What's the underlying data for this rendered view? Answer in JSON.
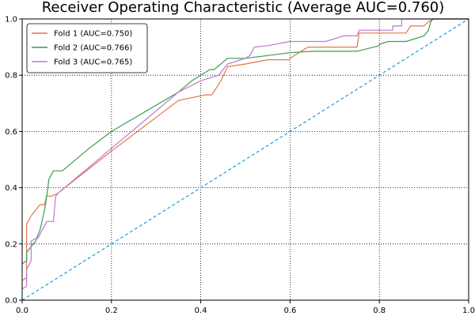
{
  "chart_data": {
    "type": "line",
    "title": "Receiver Operating Characteristic (Average AUC=0.760)",
    "xlabel": "",
    "ylabel": "",
    "xlim": [
      0,
      1
    ],
    "ylim": [
      0,
      1
    ],
    "grid": true,
    "legend_position": "top-left",
    "x_ticks": [
      "0.0",
      "0.2",
      "0.4",
      "0.6",
      "0.8",
      "1.0"
    ],
    "y_ticks": [
      "0.0",
      "0.2",
      "0.4",
      "0.6",
      "0.8",
      "1.0"
    ],
    "series": [
      {
        "name": "Fold 1 (AUC=0.750)",
        "color": "#e1774b",
        "points": [
          [
            0,
            0.07
          ],
          [
            0.01,
            0.08
          ],
          [
            0.01,
            0.27
          ],
          [
            0.02,
            0.3
          ],
          [
            0.03,
            0.32
          ],
          [
            0.04,
            0.34
          ],
          [
            0.05,
            0.34
          ],
          [
            0.055,
            0.37
          ],
          [
            0.065,
            0.37
          ],
          [
            0.08,
            0.38
          ],
          [
            0.2,
            0.53
          ],
          [
            0.35,
            0.71
          ],
          [
            0.41,
            0.73
          ],
          [
            0.425,
            0.73
          ],
          [
            0.445,
            0.78
          ],
          [
            0.46,
            0.83
          ],
          [
            0.5,
            0.84
          ],
          [
            0.55,
            0.855
          ],
          [
            0.6,
            0.855
          ],
          [
            0.6,
            0.86
          ],
          [
            0.64,
            0.9
          ],
          [
            0.75,
            0.9
          ],
          [
            0.755,
            0.95
          ],
          [
            0.84,
            0.95
          ],
          [
            0.86,
            0.95
          ],
          [
            0.87,
            0.975
          ],
          [
            0.9,
            0.975
          ],
          [
            0.91,
            0.99
          ],
          [
            0.92,
            1.0
          ],
          [
            1.0,
            1.0
          ]
        ]
      },
      {
        "name": "Fold 2 (AUC=0.766)",
        "color": "#3b9d4c",
        "points": [
          [
            0,
            0.13
          ],
          [
            0.01,
            0.14
          ],
          [
            0.01,
            0.17
          ],
          [
            0.025,
            0.2
          ],
          [
            0.03,
            0.21
          ],
          [
            0.04,
            0.25
          ],
          [
            0.05,
            0.32
          ],
          [
            0.055,
            0.37
          ],
          [
            0.06,
            0.43
          ],
          [
            0.07,
            0.46
          ],
          [
            0.09,
            0.46
          ],
          [
            0.15,
            0.54
          ],
          [
            0.2,
            0.6
          ],
          [
            0.35,
            0.74
          ],
          [
            0.38,
            0.78
          ],
          [
            0.42,
            0.82
          ],
          [
            0.43,
            0.82
          ],
          [
            0.46,
            0.86
          ],
          [
            0.5,
            0.86
          ],
          [
            0.55,
            0.87
          ],
          [
            0.6,
            0.88
          ],
          [
            0.65,
            0.885
          ],
          [
            0.75,
            0.885
          ],
          [
            0.8,
            0.905
          ],
          [
            0.8,
            0.91
          ],
          [
            0.82,
            0.92
          ],
          [
            0.86,
            0.92
          ],
          [
            0.9,
            0.94
          ],
          [
            0.91,
            0.96
          ],
          [
            0.915,
            0.99
          ],
          [
            0.92,
            1.0
          ],
          [
            1.0,
            1.0
          ]
        ]
      },
      {
        "name": "Fold 3 (AUC=0.765)",
        "color": "#c075d1",
        "points": [
          [
            0,
            0.04
          ],
          [
            0.01,
            0.05
          ],
          [
            0.01,
            0.11
          ],
          [
            0.02,
            0.14
          ],
          [
            0.02,
            0.21
          ],
          [
            0.03,
            0.22
          ],
          [
            0.035,
            0.22
          ],
          [
            0.045,
            0.25
          ],
          [
            0.055,
            0.28
          ],
          [
            0.07,
            0.28
          ],
          [
            0.075,
            0.37
          ],
          [
            0.08,
            0.38
          ],
          [
            0.2,
            0.54
          ],
          [
            0.35,
            0.74
          ],
          [
            0.4,
            0.78
          ],
          [
            0.44,
            0.8
          ],
          [
            0.46,
            0.84
          ],
          [
            0.5,
            0.86
          ],
          [
            0.51,
            0.87
          ],
          [
            0.52,
            0.9
          ],
          [
            0.55,
            0.905
          ],
          [
            0.6,
            0.92
          ],
          [
            0.65,
            0.92
          ],
          [
            0.68,
            0.92
          ],
          [
            0.72,
            0.94
          ],
          [
            0.75,
            0.94
          ],
          [
            0.755,
            0.96
          ],
          [
            0.83,
            0.96
          ],
          [
            0.83,
            0.975
          ],
          [
            0.85,
            0.975
          ],
          [
            0.85,
            1.0
          ],
          [
            1.0,
            1.0
          ]
        ]
      },
      {
        "name": "",
        "color": "#1a9be0",
        "style": "dashed",
        "points": [
          [
            0,
            0
          ],
          [
            1,
            1
          ]
        ]
      }
    ]
  }
}
